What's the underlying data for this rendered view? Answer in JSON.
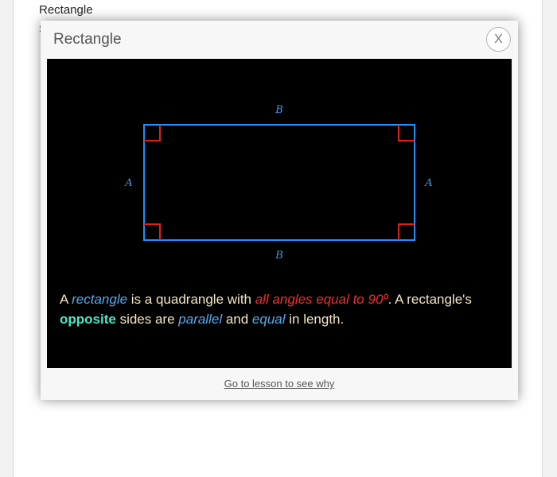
{
  "background": {
    "heading": "Rectangle",
    "sub_glyph": "S"
  },
  "modal": {
    "title": "Rectangle",
    "close_label": "X"
  },
  "diagram": {
    "top_label": "B",
    "bottom_label": "B",
    "left_label": "A",
    "right_label": "A",
    "edge_color": "#1e90ff",
    "right_angle_color": "#e02020"
  },
  "description": {
    "t1": "A ",
    "t2": "rectangle",
    "t3": " is a quadrangle with ",
    "t4": "all angles equal to 90º",
    "t5": ". A rectangle's ",
    "t6": "opposite",
    "t7": " sides are ",
    "t8": "parallel",
    "t9": " and ",
    "t10": "equal",
    "t11": " in length."
  },
  "footer": {
    "lesson_link": "Go to lesson to see why"
  }
}
